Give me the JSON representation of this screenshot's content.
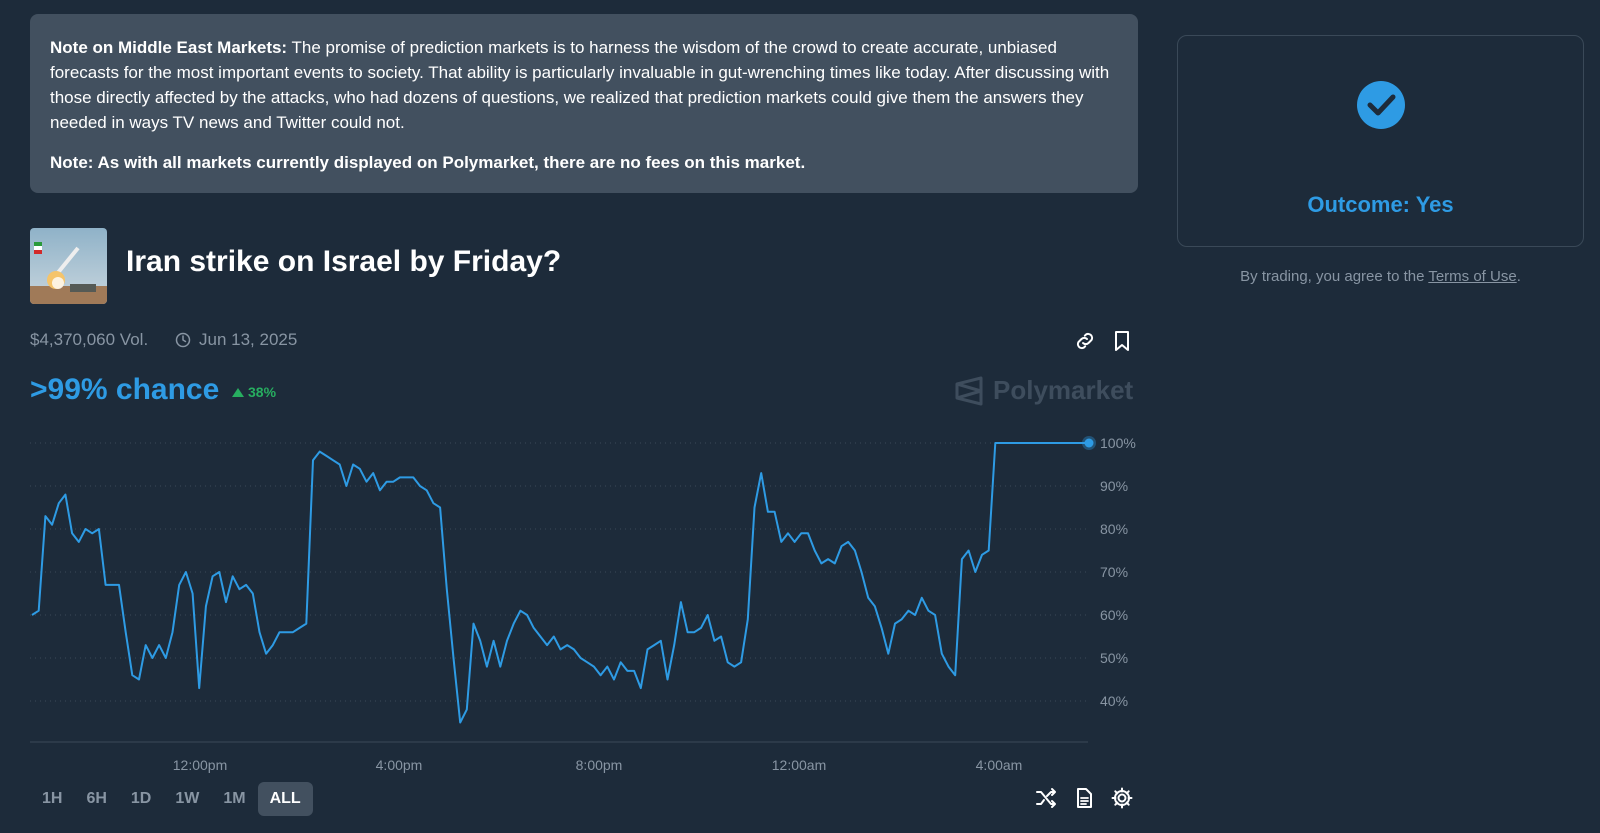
{
  "note": {
    "title": "Note on Middle East Markets:",
    "body": " The promise of prediction markets is to harness the wisdom of the crowd to create accurate, unbiased forecasts for the most important events to society. That ability is particularly invaluable in gut-wrenching times like today. After discussing with those directly affected by the attacks, who had dozens of questions, we realized that prediction markets could give them the answers they needed in ways TV news and Twitter could not.",
    "fees": "Note: As with all markets currently displayed on Polymarket, there are no fees on this market."
  },
  "outcome": {
    "label": "Outcome: Yes",
    "terms_prefix": "By trading, you agree to the ",
    "terms_link": "Terms of Use",
    "terms_suffix": "."
  },
  "market": {
    "title": "Iran strike on Israel by Friday?",
    "volume": "$4,370,060 Vol.",
    "date": "Jun 13, 2025",
    "chance": ">99% chance",
    "change": "38%",
    "brand": "Polymarket"
  },
  "colors": {
    "background": "#1d2b3a",
    "accent": "#2e9be4",
    "positive": "#27ae60",
    "muted": "#8895a3"
  },
  "icons": {
    "link": "link-icon",
    "bookmark": "bookmark-icon",
    "clock": "clock-icon",
    "check": "check-circle-icon",
    "shuffle": "shuffle-icon",
    "document": "document-icon",
    "settings": "gear-icon"
  },
  "ranges": [
    "1H",
    "6H",
    "1D",
    "1W",
    "1M",
    "ALL"
  ],
  "active_range": "ALL",
  "chart_data": {
    "type": "line",
    "series": [
      {
        "values": [
          60,
          61,
          83,
          81,
          86,
          88,
          79,
          77,
          80,
          79,
          80,
          67,
          67,
          67,
          56,
          46,
          45,
          53,
          50,
          53,
          50,
          56,
          67,
          70,
          65,
          43,
          62,
          69,
          70,
          63,
          69,
          66,
          67,
          65,
          56,
          51,
          53,
          56,
          56,
          56,
          57,
          58,
          96,
          98,
          97,
          96,
          95,
          90,
          95,
          94,
          91,
          93,
          89,
          91,
          91,
          92,
          92,
          92,
          90,
          89,
          86,
          85,
          66,
          50,
          35,
          38,
          58,
          54,
          48,
          54,
          48,
          54,
          58,
          61,
          60,
          57,
          55,
          53,
          55,
          52,
          53,
          52,
          50,
          49,
          48,
          46,
          48,
          45,
          49,
          47,
          47,
          43,
          52,
          53,
          54,
          45,
          53,
          63,
          56,
          56,
          57,
          60,
          54,
          55,
          49,
          48,
          49,
          59,
          85,
          93,
          84,
          84,
          77,
          79,
          77,
          79,
          79,
          75,
          72,
          73,
          72,
          76,
          77,
          75,
          70,
          64,
          62,
          57,
          51,
          58,
          59,
          61,
          60,
          64,
          61,
          60,
          51,
          48,
          46,
          73,
          75,
          70,
          74,
          75,
          100,
          100,
          100,
          100,
          100,
          100,
          100,
          100,
          100,
          100,
          100,
          100,
          100,
          100,
          100
        ],
        "color": "#2e9be4"
      }
    ],
    "x_ticks": [
      "12:00pm",
      "4:00pm",
      "8:00pm",
      "12:00am",
      "4:00am"
    ],
    "y_ticks": [
      "100%",
      "90%",
      "80%",
      "70%",
      "60%",
      "50%",
      "40%"
    ],
    "ylim": [
      33,
      100
    ],
    "grid": true,
    "last_value": ">99%"
  }
}
